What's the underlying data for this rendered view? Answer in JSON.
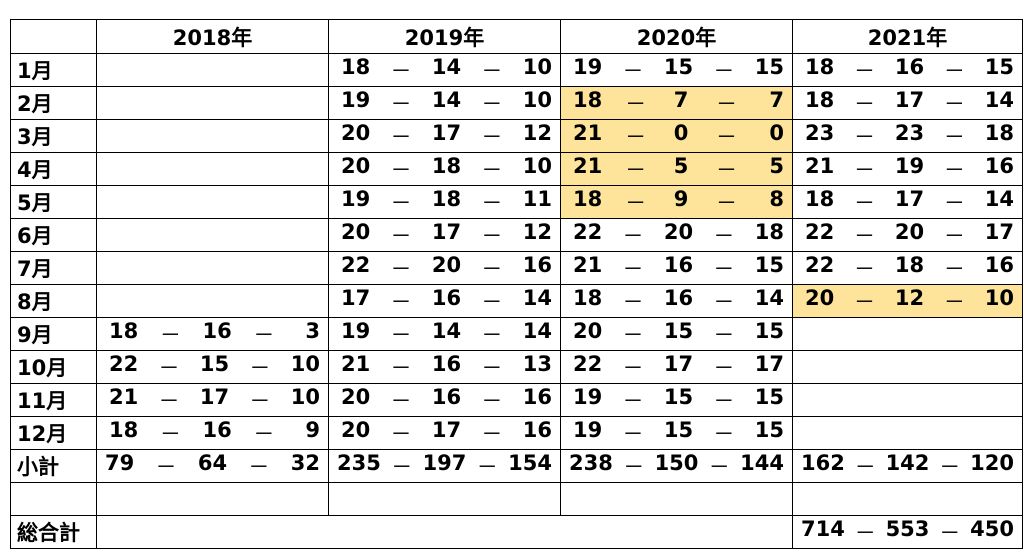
{
  "years": [
    "2018年",
    "2019年",
    "2020年",
    "2021年"
  ],
  "months": [
    "1月",
    "2月",
    "3月",
    "4月",
    "5月",
    "6月",
    "7月",
    "8月",
    "9月",
    "10月",
    "11月",
    "12月"
  ],
  "cells": [
    [
      null,
      [
        "18",
        "14",
        "10"
      ],
      [
        "19",
        "15",
        "15"
      ],
      [
        "18",
        "16",
        "15"
      ]
    ],
    [
      null,
      [
        "19",
        "14",
        "10"
      ],
      [
        "18",
        "7",
        "7"
      ],
      [
        "18",
        "17",
        "14"
      ]
    ],
    [
      null,
      [
        "20",
        "17",
        "12"
      ],
      [
        "21",
        "0",
        "0"
      ],
      [
        "23",
        "23",
        "18"
      ]
    ],
    [
      null,
      [
        "20",
        "18",
        "10"
      ],
      [
        "21",
        "5",
        "5"
      ],
      [
        "21",
        "19",
        "16"
      ]
    ],
    [
      null,
      [
        "19",
        "18",
        "11"
      ],
      [
        "18",
        "9",
        "8"
      ],
      [
        "18",
        "17",
        "14"
      ]
    ],
    [
      null,
      [
        "20",
        "17",
        "12"
      ],
      [
        "22",
        "20",
        "18"
      ],
      [
        "22",
        "20",
        "17"
      ]
    ],
    [
      null,
      [
        "22",
        "20",
        "16"
      ],
      [
        "21",
        "16",
        "15"
      ],
      [
        "22",
        "18",
        "16"
      ]
    ],
    [
      null,
      [
        "17",
        "16",
        "14"
      ],
      [
        "18",
        "16",
        "14"
      ],
      [
        "20",
        "12",
        "10"
      ]
    ],
    [
      [
        "18",
        "16",
        "3"
      ],
      [
        "19",
        "14",
        "14"
      ],
      [
        "20",
        "15",
        "15"
      ],
      null
    ],
    [
      [
        "22",
        "15",
        "10"
      ],
      [
        "21",
        "16",
        "13"
      ],
      [
        "22",
        "17",
        "17"
      ],
      null
    ],
    [
      [
        "21",
        "17",
        "10"
      ],
      [
        "20",
        "16",
        "16"
      ],
      [
        "19",
        "15",
        "15"
      ],
      null
    ],
    [
      [
        "18",
        "16",
        "9"
      ],
      [
        "20",
        "17",
        "16"
      ],
      [
        "19",
        "15",
        "15"
      ],
      null
    ]
  ],
  "highlighted": [
    [
      1,
      2
    ],
    [
      2,
      2
    ],
    [
      3,
      2
    ],
    [
      4,
      2
    ],
    [
      7,
      3
    ]
  ],
  "subtotal_label": "小計",
  "subtotals": [
    [
      "79",
      "64",
      "32"
    ],
    [
      "235",
      "197",
      "154"
    ],
    [
      "238",
      "150",
      "144"
    ],
    [
      "162",
      "142",
      "120"
    ]
  ],
  "grand_total_label": "総合計",
  "grand_total": [
    "714",
    "553",
    "450"
  ],
  "dash": "－",
  "highlight_color": "#fde49a"
}
